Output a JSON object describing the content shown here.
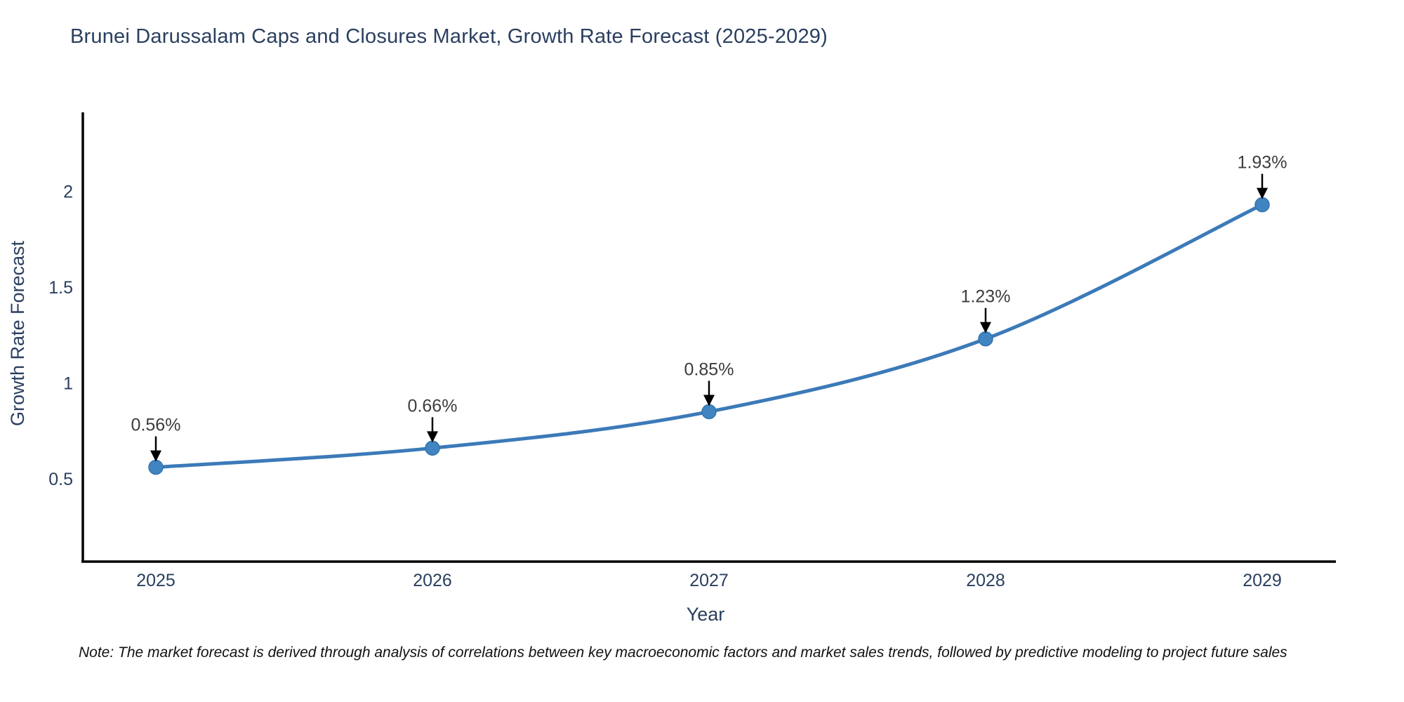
{
  "chart_data": {
    "type": "line",
    "title": "Brunei Darussalam Caps and Closures Market, Growth Rate Forecast (2025-2029)",
    "xlabel": "Year",
    "ylabel": "Growth Rate Forecast",
    "x": [
      "2025",
      "2026",
      "2027",
      "2028",
      "2029"
    ],
    "series": [
      {
        "name": "Growth Rate Forecast",
        "values": [
          0.56,
          0.66,
          0.85,
          1.23,
          1.93
        ]
      }
    ],
    "point_labels": [
      "0.56%",
      "0.66%",
      "0.85%",
      "1.23%",
      "1.93%"
    ],
    "y_ticks": [
      0.5,
      1,
      1.5,
      2
    ],
    "y_tick_labels": [
      "0.5",
      "1",
      "1.5",
      "2"
    ],
    "ylim": [
      0.07,
      2.43
    ],
    "grid": false,
    "legend": "none",
    "curve": "spline",
    "line_color": "#3c7ab8",
    "marker_color": "#4084c1",
    "marker_edge_color": "#3674ad",
    "axis_color": "#000000",
    "tick_label_color": "#2a3f5f",
    "axis_title_color": "#2a3f5f",
    "annotation_color": "#3d3d3d",
    "arrow_color": "#000000",
    "background_color": "#ffffff"
  },
  "note": "Note: The market forecast is derived through analysis of correlations between key macroeconomic factors and market sales trends, followed by predictive modeling to project future sales"
}
